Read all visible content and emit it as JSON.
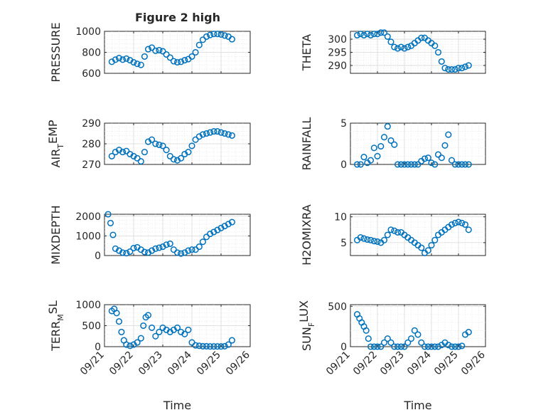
{
  "figure": {
    "title": "Figure 2 high"
  },
  "colors": {
    "marker": "#0072BD",
    "axis": "#262626",
    "grid": "#d9d9d9"
  },
  "chart_data": [
    {
      "id": "pressure",
      "type": "scatter",
      "title": "Figure 2 high",
      "ylabel": "PRESSURE",
      "ylabel_sub": "",
      "ylabel_tail": "",
      "xlim": [
        "09/21",
        "09/26"
      ],
      "ylim": [
        600,
        1000
      ],
      "yticks": [
        600,
        800,
        1000
      ],
      "xticklabels": [],
      "xlabel": "",
      "x": [
        "09/21 06:00",
        "09/21 09:00",
        "09/21 12:00",
        "09/21 15:00",
        "09/21 18:00",
        "09/21 21:00",
        "09/22 00:00",
        "09/22 03:00",
        "09/22 06:00",
        "09/22 09:00",
        "09/22 12:00",
        "09/22 15:00",
        "09/22 18:00",
        "09/22 21:00",
        "09/23 00:00",
        "09/23 03:00",
        "09/23 06:00",
        "09/23 09:00",
        "09/23 12:00",
        "09/23 15:00",
        "09/23 18:00",
        "09/23 21:00",
        "09/24 00:00",
        "09/24 03:00",
        "09/24 06:00",
        "09/24 09:00",
        "09/24 12:00",
        "09/24 15:00",
        "09/24 18:00",
        "09/24 21:00",
        "09/25 00:00",
        "09/25 03:00",
        "09/25 06:00",
        "09/25 09:00"
      ],
      "y": [
        710,
        730,
        745,
        730,
        740,
        725,
        705,
        690,
        680,
        760,
        830,
        845,
        815,
        820,
        810,
        780,
        750,
        715,
        705,
        710,
        725,
        735,
        760,
        800,
        870,
        920,
        950,
        965,
        975,
        975,
        970,
        960,
        950,
        925
      ]
    },
    {
      "id": "theta",
      "type": "scatter",
      "title": "",
      "ylabel": "THETA",
      "ylabel_sub": "",
      "ylabel_tail": "",
      "xlim": [
        "09/21",
        "09/26"
      ],
      "ylim": [
        287,
        303
      ],
      "yticks": [
        290,
        295,
        300
      ],
      "xticklabels": [],
      "xlabel": "",
      "x": [
        "09/21 06:00",
        "09/21 09:00",
        "09/21 12:00",
        "09/21 15:00",
        "09/21 18:00",
        "09/21 21:00",
        "09/22 00:00",
        "09/22 03:00",
        "09/22 06:00",
        "09/22 09:00",
        "09/22 12:00",
        "09/22 15:00",
        "09/22 18:00",
        "09/22 21:00",
        "09/23 00:00",
        "09/23 03:00",
        "09/23 06:00",
        "09/23 09:00",
        "09/23 12:00",
        "09/23 15:00",
        "09/23 18:00",
        "09/23 21:00",
        "09/24 00:00",
        "09/24 03:00",
        "09/24 06:00",
        "09/24 09:00",
        "09/24 12:00",
        "09/24 15:00",
        "09/24 18:00",
        "09/24 21:00",
        "09/25 00:00",
        "09/25 03:00",
        "09/25 06:00",
        "09/25 09:00"
      ],
      "y": [
        301.5,
        302,
        301.5,
        302,
        301.5,
        302,
        302,
        302.5,
        302.5,
        301,
        299,
        297,
        296.5,
        297,
        296.5,
        297,
        297.5,
        298.5,
        299.5,
        300.5,
        300.5,
        299.5,
        298.5,
        297.5,
        295,
        291.5,
        289,
        288.5,
        288.5,
        288.5,
        289,
        289,
        289.5,
        290
      ]
    },
    {
      "id": "air_temp",
      "type": "scatter",
      "title": "",
      "ylabel": "AIR",
      "ylabel_sub": "T",
      "ylabel_tail": "EMP",
      "xlim": [
        "09/21",
        "09/26"
      ],
      "ylim": [
        270,
        290
      ],
      "yticks": [
        270,
        280,
        290
      ],
      "xticklabels": [],
      "xlabel": "",
      "x": [
        "09/21 06:00",
        "09/21 09:00",
        "09/21 12:00",
        "09/21 15:00",
        "09/21 18:00",
        "09/21 21:00",
        "09/22 00:00",
        "09/22 03:00",
        "09/22 06:00",
        "09/22 09:00",
        "09/22 12:00",
        "09/22 15:00",
        "09/22 18:00",
        "09/22 21:00",
        "09/23 00:00",
        "09/23 03:00",
        "09/23 06:00",
        "09/23 09:00",
        "09/23 12:00",
        "09/23 15:00",
        "09/23 18:00",
        "09/23 21:00",
        "09/24 00:00",
        "09/24 03:00",
        "09/24 06:00",
        "09/24 09:00",
        "09/24 12:00",
        "09/24 15:00",
        "09/24 18:00",
        "09/24 21:00",
        "09/25 00:00",
        "09/25 03:00",
        "09/25 06:00",
        "09/25 09:00"
      ],
      "y": [
        274,
        276,
        277,
        276,
        276.5,
        275,
        274,
        273,
        271.5,
        276,
        281,
        282,
        280,
        279.5,
        279,
        277,
        274,
        272.5,
        272,
        273,
        275,
        276,
        279,
        282,
        283.5,
        284.5,
        285,
        285.5,
        286,
        286,
        285.5,
        285,
        284.5,
        284
      ]
    },
    {
      "id": "rainfall",
      "type": "scatter",
      "title": "",
      "ylabel": "RAINFALL",
      "ylabel_sub": "",
      "ylabel_tail": "",
      "xlim": [
        "09/21",
        "09/26"
      ],
      "ylim": [
        0,
        5
      ],
      "yticks": [
        0,
        5
      ],
      "xticklabels": [],
      "xlabel": "",
      "x": [
        "09/21 06:00",
        "09/21 09:00",
        "09/21 12:00",
        "09/21 15:00",
        "09/21 18:00",
        "09/21 21:00",
        "09/22 00:00",
        "09/22 03:00",
        "09/22 06:00",
        "09/22 09:00",
        "09/22 12:00",
        "09/22 15:00",
        "09/22 18:00",
        "09/22 21:00",
        "09/23 00:00",
        "09/23 03:00",
        "09/23 06:00",
        "09/23 09:00",
        "09/23 12:00",
        "09/23 15:00",
        "09/23 18:00",
        "09/23 21:00",
        "09/24 00:00",
        "09/24 03:00",
        "09/24 06:00",
        "09/24 09:00",
        "09/24 12:00",
        "09/24 15:00",
        "09/24 18:00",
        "09/24 21:00",
        "09/25 00:00",
        "09/25 03:00",
        "09/25 06:00",
        "09/25 09:00"
      ],
      "y": [
        0,
        0,
        0.9,
        0.2,
        0.5,
        2,
        1,
        2.2,
        3.3,
        4.6,
        2.9,
        2.4,
        0,
        0,
        0,
        0,
        0,
        0,
        0,
        0.4,
        0.7,
        0.8,
        0.2,
        0,
        1.2,
        0.8,
        2.3,
        3.6,
        0.5,
        0,
        0,
        0,
        0,
        0
      ]
    },
    {
      "id": "mixdepth",
      "type": "scatter",
      "title": "",
      "ylabel": "MIXDEPTH",
      "ylabel_sub": "",
      "ylabel_tail": "",
      "xlim": [
        "09/21",
        "09/26"
      ],
      "ylim": [
        0,
        2100
      ],
      "yticks": [
        0,
        1000,
        2000
      ],
      "xticklabels": [],
      "xlabel": "",
      "x": [
        "09/21 03:00",
        "09/21 05:00",
        "09/21 07:00",
        "09/21 09:00",
        "09/21 12:00",
        "09/21 15:00",
        "09/21 18:00",
        "09/21 21:00",
        "09/22 00:00",
        "09/22 03:00",
        "09/22 06:00",
        "09/22 09:00",
        "09/22 12:00",
        "09/22 15:00",
        "09/22 18:00",
        "09/22 21:00",
        "09/23 00:00",
        "09/23 03:00",
        "09/23 06:00",
        "09/23 09:00",
        "09/23 12:00",
        "09/23 15:00",
        "09/23 18:00",
        "09/23 21:00",
        "09/24 00:00",
        "09/24 03:00",
        "09/24 06:00",
        "09/24 09:00",
        "09/24 12:00",
        "09/24 15:00",
        "09/24 18:00",
        "09/24 21:00",
        "09/25 00:00",
        "09/25 03:00",
        "09/25 06:00",
        "09/25 09:00"
      ],
      "y": [
        2100,
        1650,
        1050,
        350,
        250,
        150,
        120,
        200,
        380,
        420,
        300,
        180,
        150,
        250,
        350,
        400,
        450,
        550,
        600,
        300,
        150,
        100,
        150,
        250,
        300,
        300,
        450,
        700,
        950,
        1100,
        1200,
        1300,
        1400,
        1500,
        1600,
        1700
      ]
    },
    {
      "id": "h2omixra",
      "type": "scatter",
      "title": "",
      "ylabel": "H2OMIXRA",
      "ylabel_sub": "",
      "ylabel_tail": "",
      "xlim": [
        "09/21",
        "09/26"
      ],
      "ylim": [
        2.5,
        10.5
      ],
      "yticks": [
        5,
        10
      ],
      "xticklabels": [],
      "xlabel": "",
      "x": [
        "09/21 06:00",
        "09/21 09:00",
        "09/21 12:00",
        "09/21 15:00",
        "09/21 18:00",
        "09/21 21:00",
        "09/22 00:00",
        "09/22 03:00",
        "09/22 06:00",
        "09/22 09:00",
        "09/22 12:00",
        "09/22 15:00",
        "09/22 18:00",
        "09/22 21:00",
        "09/23 00:00",
        "09/23 03:00",
        "09/23 06:00",
        "09/23 09:00",
        "09/23 12:00",
        "09/23 15:00",
        "09/23 18:00",
        "09/23 21:00",
        "09/24 00:00",
        "09/24 03:00",
        "09/24 06:00",
        "09/24 09:00",
        "09/24 12:00",
        "09/24 15:00",
        "09/24 18:00",
        "09/24 21:00",
        "09/25 00:00",
        "09/25 03:00",
        "09/25 06:00",
        "09/25 09:00"
      ],
      "y": [
        5.5,
        6,
        5.8,
        5.6,
        5.5,
        5.3,
        5.2,
        5,
        5.5,
        6.5,
        7.5,
        7.3,
        7,
        7,
        6.5,
        6,
        5.5,
        5,
        4.5,
        4,
        3,
        3.5,
        4.5,
        5.5,
        6.5,
        7,
        7.5,
        8,
        8.5,
        8.8,
        9,
        8.8,
        8.5,
        7.5
      ]
    },
    {
      "id": "terr_msl",
      "type": "scatter",
      "title": "",
      "ylabel": "TERR",
      "ylabel_sub": "M",
      "ylabel_tail": "SL",
      "xlim": [
        "09/21",
        "09/26"
      ],
      "ylim": [
        0,
        1000
      ],
      "yticks": [
        0,
        500,
        1000
      ],
      "xticklabels": [
        "09/21",
        "09/22",
        "09/23",
        "09/24",
        "09/25",
        "09/26"
      ],
      "xlabel": "Time",
      "x": [
        "09/21 06:00",
        "09/21 08:00",
        "09/21 10:00",
        "09/21 12:00",
        "09/21 14:00",
        "09/21 16:00",
        "09/21 18:00",
        "09/21 21:00",
        "09/22 00:00",
        "09/22 03:00",
        "09/22 06:00",
        "09/22 08:00",
        "09/22 10:00",
        "09/22 12:00",
        "09/22 15:00",
        "09/22 18:00",
        "09/22 21:00",
        "09/23 00:00",
        "09/23 03:00",
        "09/23 06:00",
        "09/23 09:00",
        "09/23 12:00",
        "09/23 15:00",
        "09/23 18:00",
        "09/23 21:00",
        "09/24 00:00",
        "09/24 03:00",
        "09/24 06:00",
        "09/24 09:00",
        "09/24 12:00",
        "09/24 15:00",
        "09/24 18:00",
        "09/24 21:00",
        "09/25 00:00",
        "09/25 03:00",
        "09/25 06:00",
        "09/25 09:00"
      ],
      "y": [
        850,
        900,
        800,
        600,
        350,
        150,
        50,
        20,
        50,
        100,
        200,
        500,
        700,
        750,
        450,
        250,
        350,
        450,
        400,
        350,
        400,
        450,
        350,
        300,
        400,
        100,
        30,
        20,
        10,
        10,
        5,
        5,
        5,
        5,
        10,
        50,
        150
      ]
    },
    {
      "id": "sun_flux",
      "type": "scatter",
      "title": "",
      "ylabel": "SUN",
      "ylabel_sub": "F",
      "ylabel_tail": "LUX",
      "xlim": [
        "09/21",
        "09/26"
      ],
      "ylim": [
        0,
        520
      ],
      "yticks": [
        0,
        500
      ],
      "xticklabels": [
        "09/21",
        "09/22",
        "09/23",
        "09/24",
        "09/25",
        "09/26"
      ],
      "xlabel": "Time",
      "x": [
        "09/21 06:00",
        "09/21 08:00",
        "09/21 10:00",
        "09/21 12:00",
        "09/21 14:00",
        "09/21 16:00",
        "09/21 18:00",
        "09/21 21:00",
        "09/22 00:00",
        "09/22 03:00",
        "09/22 06:00",
        "09/22 09:00",
        "09/22 12:00",
        "09/22 15:00",
        "09/22 18:00",
        "09/22 21:00",
        "09/23 00:00",
        "09/23 03:00",
        "09/23 06:00",
        "09/23 09:00",
        "09/23 12:00",
        "09/23 15:00",
        "09/23 18:00",
        "09/23 21:00",
        "09/24 00:00",
        "09/24 03:00",
        "09/24 06:00",
        "09/24 09:00",
        "09/24 12:00",
        "09/24 15:00",
        "09/24 18:00",
        "09/24 21:00",
        "09/25 00:00",
        "09/25 03:00",
        "09/25 06:00",
        "09/25 09:00"
      ],
      "y": [
        400,
        350,
        300,
        250,
        200,
        100,
        0,
        0,
        0,
        0,
        50,
        100,
        50,
        0,
        0,
        0,
        0,
        50,
        100,
        200,
        150,
        50,
        0,
        0,
        0,
        0,
        0,
        20,
        50,
        20,
        0,
        0,
        0,
        10,
        150,
        180
      ]
    }
  ]
}
